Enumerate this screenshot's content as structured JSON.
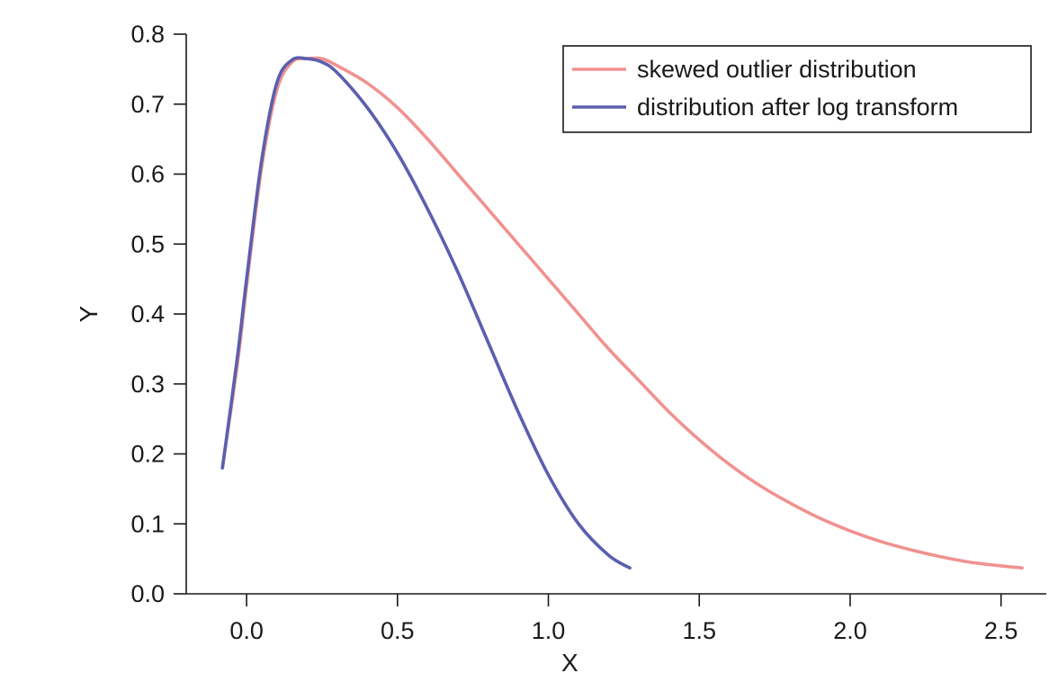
{
  "chart_data": {
    "type": "line",
    "xlabel": "X",
    "ylabel": "Y",
    "xlim": [
      -0.2,
      2.65
    ],
    "ylim": [
      0.0,
      0.8
    ],
    "x_ticks": [
      "0.0",
      "0.5",
      "1.0",
      "1.5",
      "2.0",
      "2.5"
    ],
    "y_ticks": [
      "0.0",
      "0.1",
      "0.2",
      "0.3",
      "0.4",
      "0.5",
      "0.6",
      "0.7",
      "0.8"
    ],
    "grid": false,
    "legend_position": "top-right",
    "series": [
      {
        "name": "skewed outlier distribution",
        "color": "#f0928f",
        "x": [
          -0.08,
          -0.03,
          0.0,
          0.05,
          0.1,
          0.15,
          0.2,
          0.25,
          0.3,
          0.4,
          0.5,
          0.6,
          0.7,
          0.8,
          0.9,
          1.0,
          1.1,
          1.2,
          1.3,
          1.4,
          1.5,
          1.6,
          1.7,
          1.8,
          1.9,
          2.0,
          2.1,
          2.2,
          2.3,
          2.4,
          2.5,
          2.57
        ],
        "y": [
          0.18,
          0.33,
          0.44,
          0.61,
          0.72,
          0.76,
          0.765,
          0.765,
          0.755,
          0.73,
          0.695,
          0.65,
          0.6,
          0.55,
          0.5,
          0.45,
          0.4,
          0.35,
          0.305,
          0.26,
          0.22,
          0.185,
          0.155,
          0.13,
          0.108,
          0.09,
          0.075,
          0.063,
          0.053,
          0.045,
          0.04,
          0.037
        ]
      },
      {
        "name": "distribution after log transform",
        "color": "#5b5fae",
        "x": [
          -0.08,
          -0.03,
          0.0,
          0.05,
          0.1,
          0.15,
          0.2,
          0.25,
          0.3,
          0.4,
          0.5,
          0.6,
          0.7,
          0.8,
          0.9,
          1.0,
          1.1,
          1.2,
          1.27
        ],
        "y": [
          0.18,
          0.34,
          0.45,
          0.62,
          0.73,
          0.763,
          0.765,
          0.76,
          0.745,
          0.695,
          0.63,
          0.55,
          0.46,
          0.36,
          0.26,
          0.17,
          0.1,
          0.055,
          0.037
        ]
      }
    ]
  }
}
